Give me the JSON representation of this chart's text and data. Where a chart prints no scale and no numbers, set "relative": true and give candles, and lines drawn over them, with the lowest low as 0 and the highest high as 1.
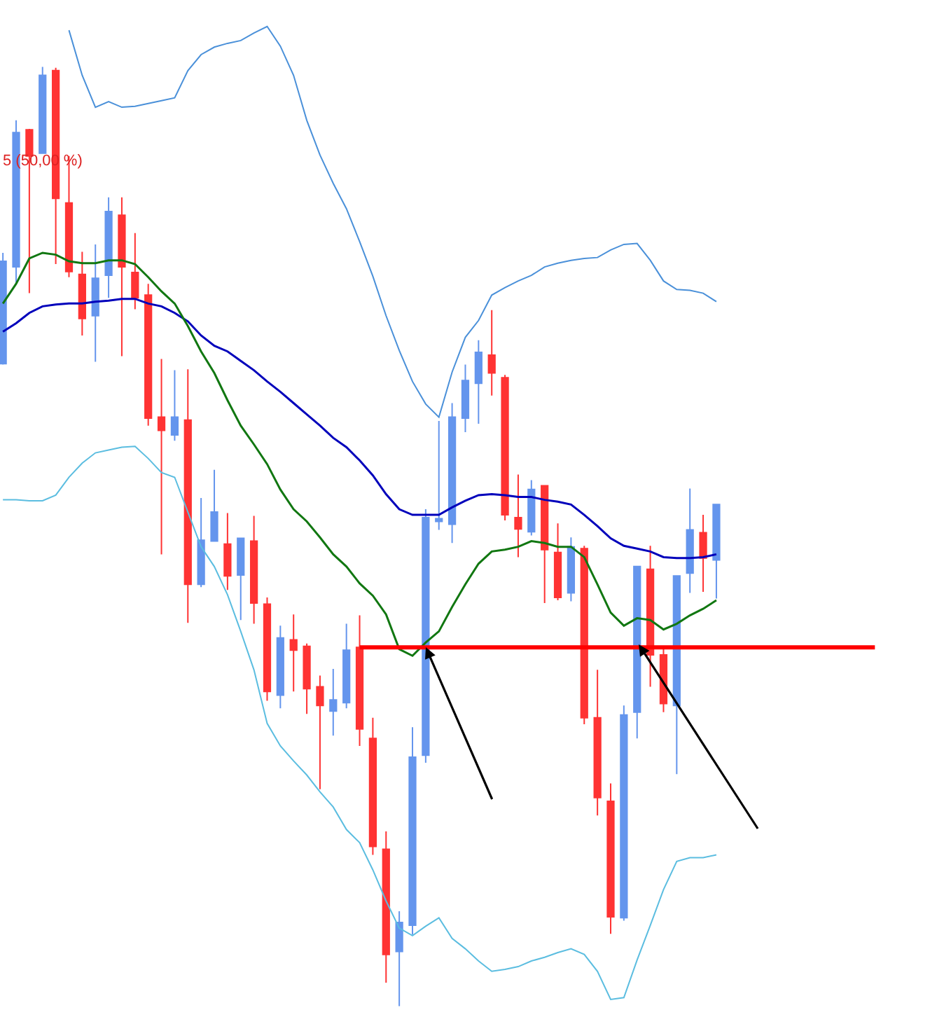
{
  "chart_data": {
    "type": "candlestick",
    "relative": true,
    "tick_labels": false,
    "categories": [
      null,
      null,
      null,
      null,
      null,
      null,
      null,
      null,
      null,
      null,
      null,
      null,
      null,
      null,
      null,
      null,
      null,
      null,
      null,
      null,
      null,
      null,
      null,
      null,
      null,
      null,
      null,
      null,
      null,
      null,
      null,
      null,
      null,
      null,
      null,
      null,
      null,
      null,
      null,
      null,
      null,
      null,
      null,
      null,
      null,
      null,
      null,
      null,
      null,
      null,
      null,
      null,
      null,
      null,
      null,
      null,
      null,
      null,
      null,
      null,
      null,
      null,
      null,
      null,
      null,
      null,
      null
    ],
    "ohlc": [
      [
        0.684,
        0.802,
        0.683,
        0.793
      ],
      [
        0.787,
        0.943,
        0.769,
        0.93
      ],
      [
        0.933,
        0.934,
        0.759,
        0.905
      ],
      [
        0.908,
        1.0,
        0.908,
        0.991
      ],
      [
        0.996,
        0.999,
        0.79,
        0.86
      ],
      [
        0.855,
        0.905,
        0.776,
        0.782
      ],
      [
        0.779,
        0.803,
        0.714,
        0.732
      ],
      [
        0.735,
        0.811,
        0.686,
        0.775
      ],
      [
        0.778,
        0.861,
        0.754,
        0.846
      ],
      [
        0.842,
        0.861,
        0.692,
        0.787
      ],
      [
        0.781,
        0.823,
        0.742,
        0.754
      ],
      [
        0.757,
        0.769,
        0.618,
        0.626
      ],
      [
        0.627,
        0.689,
        0.481,
        0.613
      ],
      [
        0.608,
        0.677,
        0.602,
        0.627
      ],
      [
        0.624,
        0.678,
        0.408,
        0.449
      ],
      [
        0.449,
        0.541,
        0.446,
        0.496
      ],
      [
        0.495,
        0.571,
        0.495,
        0.526
      ],
      [
        0.492,
        0.525,
        0.443,
        0.458
      ],
      [
        0.459,
        0.498,
        0.411,
        0.498
      ],
      [
        0.495,
        0.522,
        0.407,
        0.429
      ],
      [
        0.428,
        0.435,
        0.325,
        0.335
      ],
      [
        0.331,
        0.405,
        0.317,
        0.392
      ],
      [
        0.39,
        0.417,
        0.335,
        0.379
      ],
      [
        0.383,
        0.386,
        0.311,
        0.338
      ],
      [
        0.34,
        0.352,
        0.231,
        0.32
      ],
      [
        0.314,
        0.359,
        0.288,
        0.326
      ],
      [
        0.323,
        0.407,
        0.317,
        0.379
      ],
      [
        0.382,
        0.416,
        0.277,
        0.295
      ],
      [
        0.285,
        0.307,
        0.161,
        0.17
      ],
      [
        0.167,
        0.186,
        0.025,
        0.055
      ],
      [
        0.058,
        0.101,
        0.0,
        0.089
      ],
      [
        0.086,
        0.297,
        0.076,
        0.265
      ],
      [
        0.267,
        0.529,
        0.259,
        0.52
      ],
      [
        0.516,
        0.623,
        0.507,
        0.519
      ],
      [
        0.513,
        0.642,
        0.493,
        0.627
      ],
      [
        0.626,
        0.683,
        0.611,
        0.666
      ],
      [
        0.663,
        0.709,
        0.62,
        0.696
      ],
      [
        0.693,
        0.741,
        0.65,
        0.674
      ],
      [
        0.669,
        0.672,
        0.517,
        0.523
      ],
      [
        0.52,
        0.566,
        0.478,
        0.508
      ],
      [
        0.505,
        0.56,
        0.501,
        0.55
      ],
      [
        0.554,
        0.554,
        0.429,
        0.486
      ],
      [
        0.483,
        0.514,
        0.432,
        0.435
      ],
      [
        0.44,
        0.499,
        0.431,
        0.489
      ],
      [
        0.487,
        0.49,
        0.3,
        0.307
      ],
      [
        0.307,
        0.358,
        0.203,
        0.222
      ],
      [
        0.218,
        0.237,
        0.077,
        0.095
      ],
      [
        0.094,
        0.32,
        0.091,
        0.31
      ],
      [
        0.313,
        0.468,
        0.285,
        0.468
      ],
      [
        0.465,
        0.49,
        0.34,
        0.374
      ],
      [
        0.374,
        0.38,
        0.313,
        0.322
      ],
      [
        0.32,
        0.458,
        0.247,
        0.458
      ],
      [
        0.461,
        0.551,
        0.44,
        0.507
      ],
      [
        0.504,
        0.523,
        0.441,
        0.477
      ],
      [
        0.475,
        0.534,
        0.434,
        0.534
      ],
      null,
      null,
      null,
      null,
      null,
      null,
      null,
      null,
      null,
      null,
      null,
      null
    ],
    "colors": [
      "#6495ed",
      "#6495ed",
      "#ff3333",
      "#6495ed",
      "#ff3333",
      "#ff3333",
      "#ff3333",
      "#6495ed",
      "#6495ed",
      "#ff3333",
      "#ff3333",
      "#ff3333",
      "#ff3333",
      "#6495ed",
      "#ff3333",
      "#6495ed",
      "#6495ed",
      "#ff3333",
      "#6495ed",
      "#ff3333",
      "#ff3333",
      "#6495ed",
      "#ff3333",
      "#ff3333",
      "#ff3333",
      "#6495ed",
      "#6495ed",
      "#ff3333",
      "#ff3333",
      "#ff3333",
      "#6495ed",
      "#6495ed",
      "#6495ed",
      "#6495ed",
      "#6495ed",
      "#6495ed",
      "#6495ed",
      "#ff3333",
      "#ff3333",
      "#ff3333",
      "#6495ed",
      "#ff3333",
      "#ff3333",
      "#6495ed",
      "#ff3333",
      "#ff3333",
      "#ff3333",
      "#6495ed",
      "#6495ed",
      "#ff3333",
      "#ff3333",
      "#6495ed",
      "#6495ed",
      "#ff3333",
      "#6495ed",
      null,
      null,
      null,
      null,
      null,
      null,
      null,
      null,
      null,
      null,
      null,
      null
    ],
    "series": [
      {
        "type": "line",
        "color": "#4a90d9",
        "values": [
          null,
          null,
          null,
          null,
          null,
          1.039,
          0.991,
          0.957,
          0.963,
          0.957,
          0.958,
          0.961,
          0.964,
          0.967,
          0.996,
          1.013,
          1.021,
          1.025,
          1.028,
          1.036,
          1.043,
          1.022,
          0.991,
          0.943,
          0.906,
          0.876,
          0.849,
          0.814,
          0.777,
          0.735,
          0.698,
          0.665,
          0.641,
          0.627,
          0.675,
          0.712,
          0.73,
          0.757,
          0.765,
          0.772,
          0.778,
          0.787,
          0.791,
          0.794,
          0.796,
          0.797,
          0.805,
          0.811,
          0.812,
          0.794,
          0.772,
          0.763,
          0.762,
          0.759,
          0.75,
          null,
          null,
          null,
          null,
          null,
          null,
          null,
          null,
          null,
          null,
          null,
          null
        ]
      },
      {
        "type": "line",
        "color": "#5bbde0",
        "values": [
          0.539,
          0.539,
          0.538,
          0.538,
          0.544,
          0.563,
          0.578,
          0.589,
          0.592,
          0.595,
          0.596,
          0.583,
          0.568,
          0.563,
          0.526,
          0.489,
          0.468,
          0.438,
          0.399,
          0.358,
          0.301,
          0.277,
          0.261,
          0.246,
          0.228,
          0.212,
          0.188,
          0.174,
          0.145,
          0.112,
          0.083,
          0.075,
          0.085,
          0.094,
          0.072,
          0.061,
          0.048,
          0.037,
          0.039,
          0.042,
          0.048,
          0.052,
          0.057,
          0.061,
          0.055,
          0.037,
          0.007,
          0.009,
          0.049,
          0.086,
          0.124,
          0.154,
          0.158,
          0.158,
          0.161,
          null,
          null,
          null,
          null,
          null,
          null,
          null,
          null,
          null,
          null,
          null,
          null
        ]
      },
      {
        "type": "line",
        "color": "#0000bb",
        "values": [
          0.718,
          0.727,
          0.738,
          0.745,
          0.747,
          0.748,
          0.748,
          0.75,
          0.751,
          0.753,
          0.753,
          0.748,
          0.745,
          0.738,
          0.729,
          0.714,
          0.703,
          0.697,
          0.687,
          0.677,
          0.665,
          0.654,
          0.642,
          0.63,
          0.618,
          0.605,
          0.595,
          0.581,
          0.565,
          0.545,
          0.529,
          0.523,
          0.523,
          0.523,
          0.531,
          0.538,
          0.544,
          0.545,
          0.544,
          0.542,
          0.542,
          0.539,
          0.537,
          0.534,
          0.523,
          0.511,
          0.498,
          0.49,
          0.487,
          0.484,
          0.478,
          0.477,
          0.477,
          0.478,
          0.481,
          null,
          null,
          null,
          null,
          null,
          null,
          null,
          null,
          null,
          null,
          null,
          null
        ]
      },
      {
        "type": "line",
        "color": "#117711",
        "values": [
          0.748,
          0.769,
          0.796,
          0.802,
          0.8,
          0.793,
          0.791,
          0.791,
          0.794,
          0.794,
          0.79,
          0.776,
          0.761,
          0.748,
          0.724,
          0.697,
          0.674,
          0.645,
          0.618,
          0.598,
          0.577,
          0.55,
          0.529,
          0.516,
          0.499,
          0.481,
          0.468,
          0.45,
          0.437,
          0.417,
          0.38,
          0.373,
          0.387,
          0.399,
          0.425,
          0.449,
          0.471,
          0.484,
          0.486,
          0.489,
          0.495,
          0.493,
          0.489,
          0.489,
          0.478,
          0.449,
          0.419,
          0.405,
          0.413,
          0.411,
          0.401,
          0.407,
          0.416,
          0.423,
          0.432,
          null,
          null,
          null,
          null,
          null,
          null,
          null,
          null,
          null,
          null,
          null,
          null
        ]
      },
      {
        "type": "line",
        "color": "#ff0000",
        "values": [
          null,
          null,
          null,
          null,
          null,
          null,
          null,
          null,
          null,
          null,
          null,
          null,
          null,
          null,
          null,
          null,
          null,
          null,
          null,
          null,
          null,
          null,
          null,
          null,
          null,
          null,
          null,
          0.382,
          0.382,
          0.382,
          0.382,
          0.382,
          0.382,
          0.382,
          0.382,
          0.382,
          0.382,
          0.382,
          0.382,
          0.382,
          0.382,
          0.382,
          0.382,
          0.382,
          0.382,
          0.382,
          0.382,
          0.382,
          0.382,
          0.382,
          0.382,
          0.382,
          0.382,
          0.382,
          0.382,
          0.382,
          0.382,
          0.382,
          0.382,
          0.382,
          0.382,
          0.382,
          0.382,
          0.382,
          0.382,
          0.382,
          0.382
        ]
      }
    ],
    "annotations": [
      "5 (50,00 %)"
    ]
  }
}
